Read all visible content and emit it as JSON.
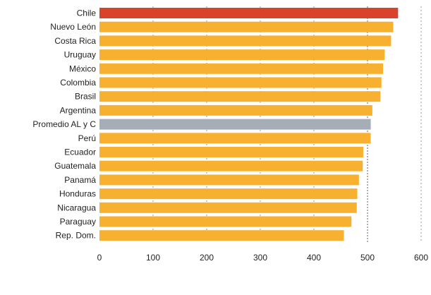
{
  "chart_data": {
    "type": "bar",
    "orientation": "horizontal",
    "categories": [
      "Chile",
      "Nuevo León",
      "Costa Rica",
      "Uruguay",
      "México",
      "Colombia",
      "Brasil",
      "Argentina",
      "Promedio AL y C",
      "Perú",
      "Ecuador",
      "Guatemala",
      "Panamá",
      "Honduras",
      "Nicaragua",
      "Paraguay",
      "Rep. Dom."
    ],
    "values": [
      557,
      548,
      544,
      532,
      529,
      526,
      524,
      509,
      506,
      506,
      492,
      491,
      484,
      481,
      480,
      470,
      456
    ],
    "bar_colors": [
      "#d9432b",
      "#f8b031",
      "#f8b031",
      "#f8b031",
      "#f8b031",
      "#f8b031",
      "#f8b031",
      "#f8b031",
      "#a5adb6",
      "#f8b031",
      "#f8b031",
      "#f8b031",
      "#f8b031",
      "#f8b031",
      "#f8b031",
      "#f8b031",
      "#f8b031"
    ],
    "xlim": [
      0,
      600
    ],
    "xticks": [
      "0",
      "100",
      "200",
      "300",
      "400",
      "500",
      "600"
    ],
    "xtick_values": [
      0,
      100,
      200,
      300,
      400,
      500,
      600
    ],
    "reference_line": 500,
    "title": "",
    "xlabel": "",
    "ylabel": "",
    "grid": true
  }
}
